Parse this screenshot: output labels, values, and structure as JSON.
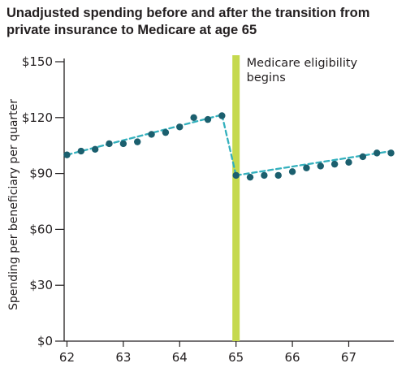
{
  "chart_data": {
    "type": "scatter",
    "title": "Unadjusted spending before and after the transition from private insurance to Medicare at age 65",
    "xlabel": "",
    "ylabel": "Spending per beneficiary per quarter",
    "xlim": [
      61.95,
      67.8
    ],
    "ylim": [
      0,
      150
    ],
    "x_ticks": [
      62,
      63,
      64,
      65,
      66,
      67
    ],
    "x_tick_labels": [
      "62",
      "63",
      "64",
      "65",
      "66",
      "67"
    ],
    "y_ticks": [
      0,
      30,
      60,
      90,
      120,
      150
    ],
    "y_tick_labels": [
      "$0",
      "$30",
      "$60",
      "$90",
      "$120",
      "$150"
    ],
    "grid": false,
    "series": [
      {
        "name": "",
        "color": "#1b5f6e",
        "x": [
          62.0,
          62.25,
          62.5,
          62.75,
          63.0,
          63.25,
          63.5,
          63.75,
          64.0,
          64.25,
          64.5,
          64.75,
          65.0,
          65.25,
          65.5,
          65.75,
          66.0,
          66.25,
          66.5,
          66.75,
          67.0,
          67.25,
          67.5,
          67.75
        ],
        "values": [
          100,
          102,
          103,
          106,
          106,
          107,
          111,
          112,
          115,
          120,
          119,
          121,
          89,
          88,
          89,
          89,
          91,
          93,
          94,
          95,
          96,
          99,
          101,
          101
        ]
      }
    ],
    "trend_lines": [
      {
        "name": "",
        "color": "#33b0bd",
        "x": [
          62.0,
          64.75
        ],
        "values": [
          100,
          121.5
        ]
      },
      {
        "name": "",
        "color": "#33b0bd",
        "x": [
          64.75,
          65.0
        ],
        "values": [
          121.5,
          89
        ]
      },
      {
        "name": "",
        "color": "#33b0bd",
        "x": [
          65.0,
          67.75
        ],
        "values": [
          89,
          102
        ]
      }
    ],
    "annotations": [
      {
        "type": "vertical_band",
        "x": 65,
        "color": "#c5d94e",
        "label_lines": [
          "Medicare eligibility",
          "begins"
        ]
      }
    ]
  }
}
